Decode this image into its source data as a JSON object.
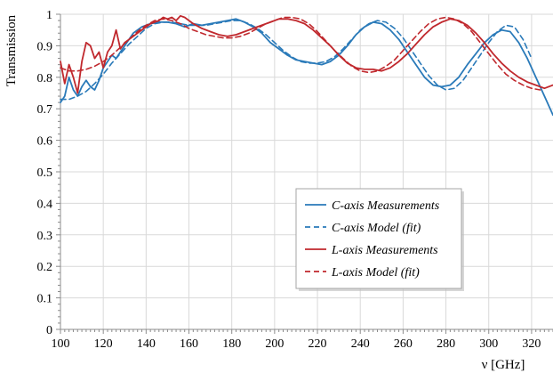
{
  "chart_data": {
    "type": "line",
    "xlabel": "ν [GHz]",
    "ylabel": "Transmission",
    "xlim": [
      100,
      330
    ],
    "ylim": [
      0,
      1
    ],
    "xticks": [
      100,
      120,
      140,
      160,
      180,
      200,
      220,
      240,
      260,
      280,
      300,
      320
    ],
    "yticks": [
      0,
      0.1,
      0.2,
      0.3,
      0.4,
      0.5,
      0.6,
      0.7,
      0.8,
      0.9,
      1
    ],
    "yticklabels": [
      "0",
      "0.1",
      "0.2",
      "0.3",
      "0.4",
      "0.5",
      "0.6",
      "0.7",
      "0.8",
      "0.9",
      "1"
    ],
    "grid": true,
    "legend_position": "lower-right",
    "series": [
      {
        "name": "C-axis Measurements",
        "color": "#2a7ab9",
        "dash": "solid",
        "x": [
          100,
          102,
          104,
          106,
          108,
          110,
          112,
          114,
          116,
          118,
          120,
          122,
          124,
          126,
          128,
          130,
          134,
          138,
          142,
          146,
          150,
          154,
          158,
          162,
          166,
          170,
          174,
          178,
          182,
          186,
          190,
          194,
          198,
          202,
          206,
          210,
          214,
          218,
          222,
          226,
          230,
          234,
          238,
          242,
          246,
          250,
          254,
          258,
          262,
          266,
          270,
          274,
          278,
          282,
          286,
          290,
          294,
          298,
          302,
          306,
          310,
          314,
          318,
          322,
          326,
          330
        ],
        "y": [
          0.72,
          0.74,
          0.8,
          0.76,
          0.74,
          0.77,
          0.79,
          0.77,
          0.76,
          0.79,
          0.83,
          0.85,
          0.87,
          0.86,
          0.88,
          0.9,
          0.94,
          0.96,
          0.97,
          0.975,
          0.975,
          0.97,
          0.96,
          0.97,
          0.965,
          0.97,
          0.975,
          0.98,
          0.985,
          0.975,
          0.96,
          0.94,
          0.91,
          0.89,
          0.87,
          0.855,
          0.85,
          0.845,
          0.84,
          0.85,
          0.87,
          0.9,
          0.935,
          0.96,
          0.975,
          0.97,
          0.95,
          0.92,
          0.88,
          0.84,
          0.8,
          0.775,
          0.77,
          0.775,
          0.8,
          0.84,
          0.875,
          0.91,
          0.935,
          0.95,
          0.945,
          0.91,
          0.86,
          0.8,
          0.74,
          0.68
        ]
      },
      {
        "name": "C-axis Model (fit)",
        "color": "#2a7ab9",
        "dash": "dashed",
        "x": [
          100,
          104,
          108,
          112,
          116,
          120,
          124,
          128,
          132,
          136,
          140,
          144,
          148,
          152,
          156,
          160,
          164,
          168,
          172,
          176,
          180,
          184,
          188,
          192,
          196,
          200,
          204,
          208,
          212,
          216,
          220,
          224,
          228,
          232,
          236,
          240,
          244,
          248,
          252,
          256,
          260,
          264,
          268,
          272,
          276,
          280,
          284,
          288,
          292,
          296,
          300,
          304,
          308,
          312,
          316,
          320
        ],
        "y": [
          0.73,
          0.73,
          0.74,
          0.755,
          0.78,
          0.81,
          0.845,
          0.875,
          0.905,
          0.93,
          0.955,
          0.97,
          0.975,
          0.975,
          0.97,
          0.965,
          0.965,
          0.965,
          0.97,
          0.975,
          0.98,
          0.98,
          0.97,
          0.955,
          0.935,
          0.91,
          0.885,
          0.865,
          0.85,
          0.845,
          0.845,
          0.85,
          0.865,
          0.89,
          0.92,
          0.95,
          0.97,
          0.98,
          0.975,
          0.955,
          0.925,
          0.885,
          0.845,
          0.805,
          0.775,
          0.76,
          0.765,
          0.79,
          0.83,
          0.87,
          0.91,
          0.945,
          0.965,
          0.96,
          0.92,
          0.86
        ]
      },
      {
        "name": "L-axis Measurements",
        "color": "#c0282d",
        "dash": "solid",
        "x": [
          100,
          102,
          104,
          106,
          108,
          110,
          112,
          114,
          116,
          118,
          120,
          122,
          124,
          126,
          128,
          130,
          134,
          138,
          142,
          146,
          148,
          150,
          152,
          154,
          156,
          158,
          162,
          166,
          170,
          174,
          178,
          182,
          186,
          190,
          194,
          198,
          202,
          206,
          210,
          214,
          218,
          222,
          226,
          230,
          234,
          238,
          242,
          246,
          250,
          254,
          258,
          262,
          266,
          270,
          274,
          278,
          282,
          286,
          290,
          294,
          298,
          302,
          306,
          310,
          314,
          318,
          322,
          326,
          330
        ],
        "y": [
          0.85,
          0.78,
          0.84,
          0.8,
          0.75,
          0.85,
          0.91,
          0.9,
          0.86,
          0.88,
          0.83,
          0.88,
          0.9,
          0.95,
          0.89,
          0.91,
          0.93,
          0.95,
          0.97,
          0.98,
          0.99,
          0.985,
          0.99,
          0.98,
          0.995,
          0.99,
          0.97,
          0.955,
          0.945,
          0.935,
          0.93,
          0.935,
          0.945,
          0.955,
          0.965,
          0.975,
          0.985,
          0.985,
          0.98,
          0.97,
          0.95,
          0.925,
          0.9,
          0.87,
          0.845,
          0.83,
          0.825,
          0.825,
          0.82,
          0.83,
          0.85,
          0.875,
          0.905,
          0.935,
          0.96,
          0.975,
          0.985,
          0.98,
          0.965,
          0.94,
          0.91,
          0.875,
          0.845,
          0.82,
          0.8,
          0.785,
          0.775,
          0.765,
          0.775
        ]
      },
      {
        "name": "L-axis Model (fit)",
        "color": "#c0282d",
        "dash": "dashed",
        "x": [
          100,
          104,
          108,
          112,
          116,
          120,
          124,
          128,
          132,
          136,
          140,
          144,
          148,
          152,
          156,
          160,
          164,
          168,
          172,
          176,
          180,
          184,
          188,
          192,
          196,
          200,
          204,
          208,
          212,
          216,
          220,
          224,
          228,
          232,
          236,
          240,
          244,
          248,
          252,
          256,
          260,
          264,
          268,
          272,
          276,
          280,
          284,
          288,
          292,
          296,
          300,
          304,
          308,
          312,
          316,
          320,
          324
        ],
        "y": [
          0.83,
          0.82,
          0.82,
          0.825,
          0.835,
          0.85,
          0.87,
          0.895,
          0.92,
          0.945,
          0.965,
          0.98,
          0.985,
          0.98,
          0.97,
          0.955,
          0.945,
          0.935,
          0.93,
          0.925,
          0.925,
          0.93,
          0.94,
          0.955,
          0.97,
          0.98,
          0.99,
          0.99,
          0.985,
          0.97,
          0.945,
          0.915,
          0.885,
          0.86,
          0.835,
          0.82,
          0.815,
          0.82,
          0.835,
          0.855,
          0.885,
          0.915,
          0.945,
          0.97,
          0.985,
          0.99,
          0.985,
          0.97,
          0.945,
          0.91,
          0.875,
          0.84,
          0.81,
          0.79,
          0.775,
          0.765,
          0.76
        ]
      }
    ]
  }
}
